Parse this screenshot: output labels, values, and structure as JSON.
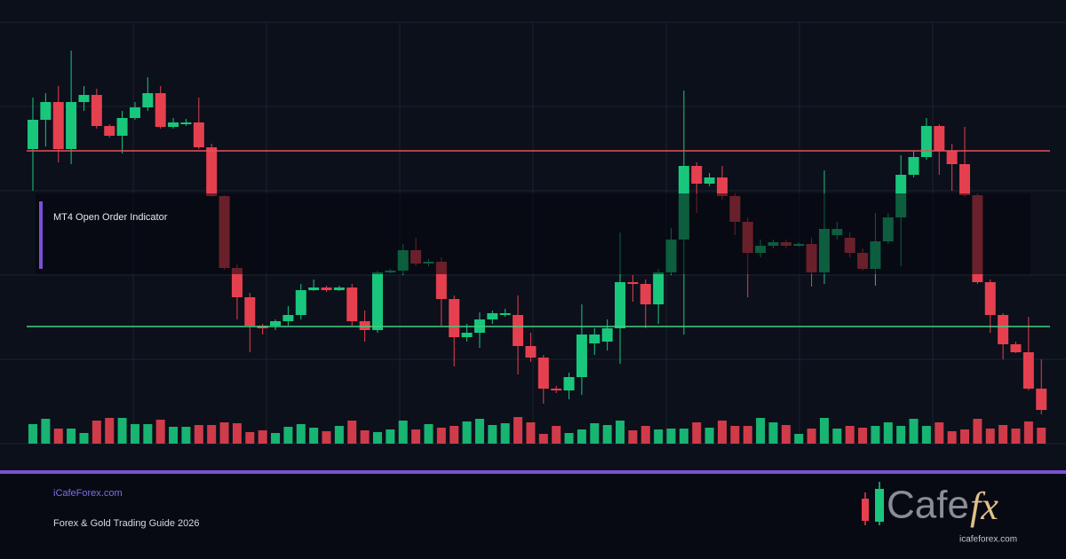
{
  "chart_data": {
    "type": "candlestick",
    "open": [
      332,
      365,
      385,
      332,
      385,
      393,
      358,
      347,
      367,
      379,
      395,
      357,
      360,
      362,
      334,
      279,
      198,
      165,
      133,
      133,
      138,
      145,
      173,
      176,
      173,
      176,
      138,
      128,
      193,
      195,
      218,
      203,
      205,
      163,
      120,
      125,
      140,
      145,
      145,
      110,
      97,
      62,
      60,
      75,
      113,
      115,
      130,
      182,
      180,
      157,
      193,
      230,
      313,
      293,
      300,
      279,
      250,
      215,
      223,
      227,
      223,
      225,
      193,
      235,
      232,
      215,
      197,
      228,
      255,
      303,
      323,
      358,
      330,
      315,
      280,
      182,
      145,
      112,
      103,
      62
    ],
    "close": [
      365,
      385,
      332,
      385,
      393,
      358,
      347,
      367,
      379,
      395,
      357,
      362,
      362,
      334,
      279,
      198,
      165,
      133,
      130,
      138,
      145,
      173,
      176,
      173,
      176,
      138,
      128,
      193,
      195,
      218,
      203,
      205,
      163,
      120,
      125,
      140,
      147,
      147,
      110,
      97,
      62,
      60,
      75,
      123,
      123,
      130,
      182,
      180,
      157,
      193,
      230,
      313,
      293,
      300,
      279,
      250,
      215,
      223,
      227,
      223,
      225,
      193,
      242,
      242,
      215,
      197,
      228,
      255,
      303,
      323,
      358,
      330,
      315,
      280,
      182,
      145,
      112,
      103,
      62,
      38
    ],
    "high": [
      390,
      395,
      403,
      443,
      403,
      400,
      360,
      375,
      385,
      413,
      403,
      367,
      366,
      390,
      338,
      280,
      202,
      170,
      135,
      140,
      155,
      180,
      185,
      178,
      178,
      180,
      150,
      195,
      197,
      225,
      232,
      208,
      210,
      167,
      135,
      148,
      150,
      152,
      167,
      125,
      100,
      65,
      80,
      157,
      130,
      140,
      238,
      190,
      185,
      197,
      243,
      398,
      317,
      305,
      313,
      282,
      255,
      230,
      230,
      230,
      227,
      232,
      308,
      250,
      238,
      220,
      260,
      260,
      325,
      330,
      367,
      360,
      338,
      357,
      282,
      185,
      147,
      115,
      143,
      95
    ],
    "low": [
      285,
      335,
      317,
      315,
      375,
      355,
      345,
      327,
      365,
      375,
      355,
      355,
      358,
      332,
      278,
      196,
      140,
      103,
      123,
      128,
      133,
      140,
      172,
      171,
      172,
      132,
      115,
      125,
      192,
      190,
      200,
      200,
      133,
      87,
      115,
      108,
      135,
      143,
      78,
      92,
      45,
      57,
      50,
      55,
      100,
      105,
      90,
      160,
      130,
      135,
      190,
      123,
      260,
      290,
      275,
      235,
      165,
      210,
      220,
      220,
      222,
      177,
      180,
      230,
      210,
      195,
      178,
      225,
      200,
      300,
      320,
      303,
      285,
      278,
      180,
      125,
      95,
      102,
      60,
      33
    ],
    "volume": [
      22,
      28,
      17,
      17,
      12,
      26,
      29,
      29,
      22,
      22,
      27,
      19,
      19,
      21,
      21,
      24,
      23,
      13,
      15,
      12,
      19,
      22,
      18,
      14,
      20,
      26,
      15,
      13,
      16,
      26,
      16,
      22,
      18,
      20,
      25,
      28,
      21,
      23,
      30,
      24,
      11,
      20,
      12,
      16,
      23,
      21,
      26,
      15,
      20,
      16,
      17,
      17,
      24,
      18,
      26,
      20,
      20,
      29,
      24,
      21,
      11,
      17,
      29,
      17,
      20,
      18,
      20,
      24,
      20,
      28,
      20,
      24,
      14,
      16,
      28,
      17,
      21,
      17,
      25,
      18
    ],
    "ylim": [
      0,
      475
    ],
    "yticks": [
      0,
      95,
      190,
      285,
      380,
      475
    ],
    "grid": true,
    "up_color": "#19c77c",
    "down_color": "#e5404f",
    "levels": [
      {
        "value": 330,
        "color": "#e8505a"
      },
      {
        "value": 132,
        "color": "#3fcf82"
      }
    ],
    "annotation": "MT4 Open Order Indicator"
  },
  "footer": {
    "site": "iCafeForex.com",
    "subtitle": "Forex & Gold Trading Guide 2026"
  },
  "logo": {
    "text": "Cafe",
    "accent": "fx",
    "url": "icafeforex.com"
  }
}
